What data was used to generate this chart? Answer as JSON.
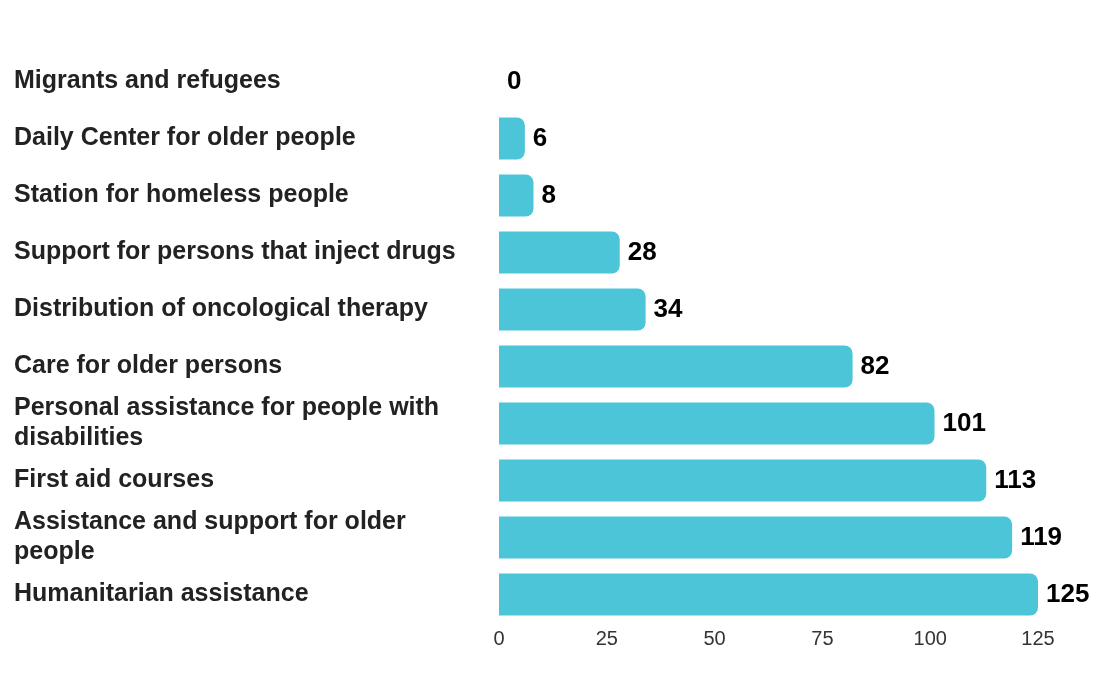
{
  "chart_data": {
    "type": "bar",
    "orientation": "horizontal",
    "categories": [
      "Migrants and refugees",
      "Daily Center for older people",
      "Station for homeless people",
      "Support for persons that inject drugs",
      "Distribution of oncological therapy",
      "Care for older persons",
      "Personal assistance for people with disabilities",
      "First aid courses",
      "Assistance and support for older people",
      "Humanitarian assistance"
    ],
    "values": [
      0,
      6,
      8,
      28,
      34,
      82,
      101,
      113,
      119,
      125
    ],
    "color": "#4dc5d8",
    "xlim": [
      0,
      125
    ],
    "xticks": [
      0,
      25,
      50,
      75,
      100,
      125
    ],
    "data_labels": true,
    "grid": false,
    "legend": false
  }
}
